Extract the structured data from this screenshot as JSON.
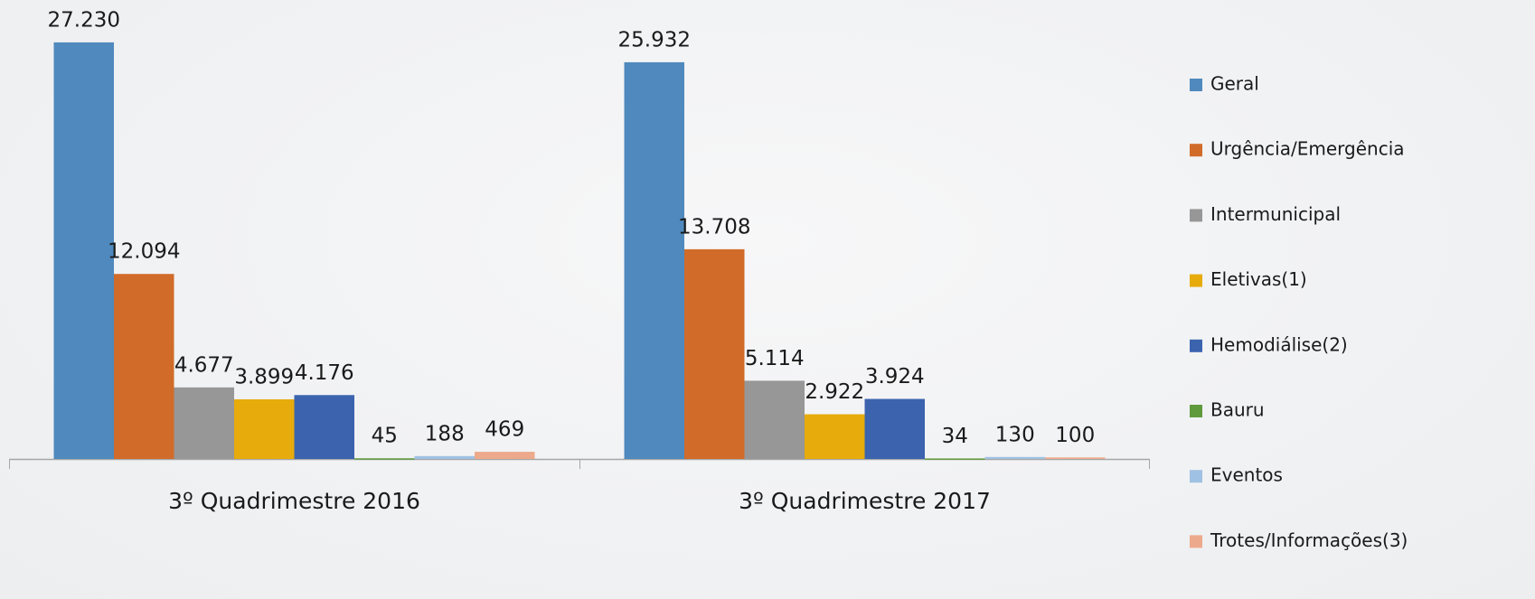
{
  "chart_data": {
    "type": "bar",
    "categories": [
      "3º Quadrimestre 2016",
      "3º Quadrimestre 2017"
    ],
    "series": [
      {
        "name": "Geral",
        "color": "#4f89bd",
        "values": [
          27230,
          25932
        ],
        "value_labels": [
          "27.230",
          "25.932"
        ]
      },
      {
        "name": "Urgência/Emergência",
        "color": "#d16b2a",
        "values": [
          12094,
          13708
        ],
        "value_labels": [
          "12.094",
          "13.708"
        ]
      },
      {
        "name": "Intermunicipal",
        "color": "#979797",
        "values": [
          4677,
          5114
        ],
        "value_labels": [
          "4.677",
          "5.114"
        ]
      },
      {
        "name": "Eletivas(1)",
        "color": "#e7ab0c",
        "values": [
          3899,
          2922
        ],
        "value_labels": [
          "3.899",
          "2.922"
        ]
      },
      {
        "name": "Hemodiálise(2)",
        "color": "#3b63ae",
        "values": [
          4176,
          3924
        ],
        "value_labels": [
          "4.176",
          "3.924"
        ]
      },
      {
        "name": "Bauru",
        "color": "#5f9a3d",
        "values": [
          45,
          34
        ],
        "value_labels": [
          "45",
          "34"
        ]
      },
      {
        "name": "Eventos",
        "color": "#9fc1e3",
        "values": [
          188,
          130
        ],
        "value_labels": [
          "188",
          "130"
        ]
      },
      {
        "name": "Trotes/Informações(3)",
        "color": "#eda98b",
        "values": [
          469,
          100
        ],
        "value_labels": [
          "469",
          "100"
        ]
      }
    ],
    "ylim": [
      0,
      30000
    ],
    "legend": "right"
  }
}
